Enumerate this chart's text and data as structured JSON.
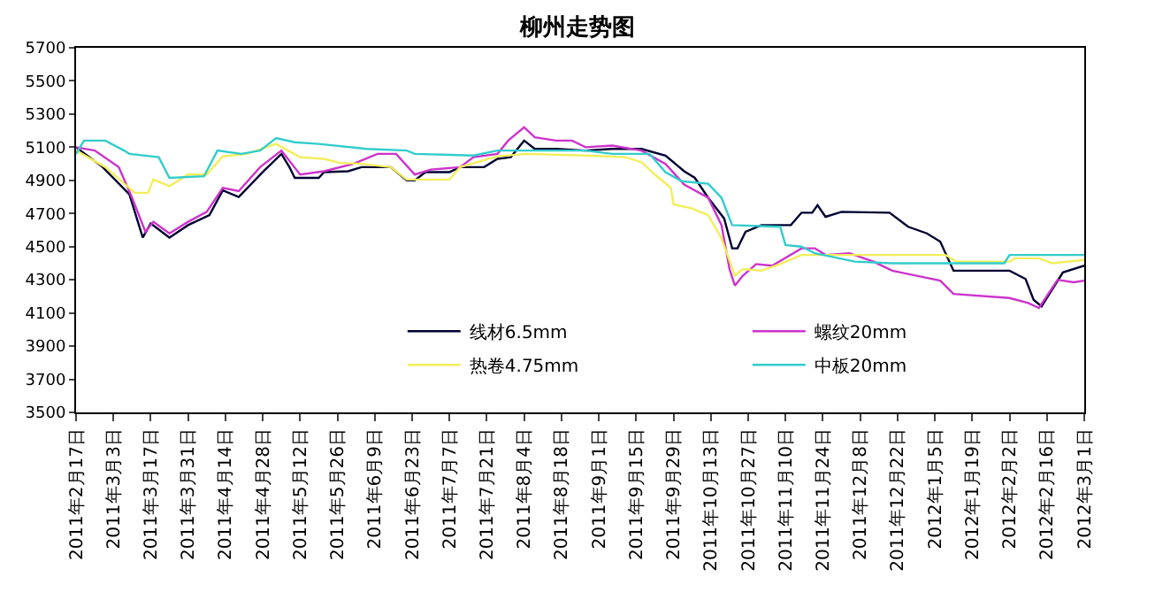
{
  "chart_data": {
    "type": "line",
    "title": "柳州走势图",
    "xlim": [
      "2011-02-17",
      "2012-03-01"
    ],
    "xticks": [
      {
        "value": "2011-02-17",
        "label": "2011年2月17日"
      },
      {
        "value": "2011-03-03",
        "label": "2011年3月3日"
      },
      {
        "value": "2011-03-17",
        "label": "2011年3月17日"
      },
      {
        "value": "2011-03-31",
        "label": "2011年3月31日"
      },
      {
        "value": "2011-04-14",
        "label": "2011年4月14日"
      },
      {
        "value": "2011-04-28",
        "label": "2011年4月28日"
      },
      {
        "value": "2011-05-12",
        "label": "2011年5月12日"
      },
      {
        "value": "2011-05-26",
        "label": "2011年5月26日"
      },
      {
        "value": "2011-06-09",
        "label": "2011年6月9日"
      },
      {
        "value": "2011-06-23",
        "label": "2011年6月23日"
      },
      {
        "value": "2011-07-07",
        "label": "2011年7月7日"
      },
      {
        "value": "2011-07-21",
        "label": "2011年7月21日"
      },
      {
        "value": "2011-08-04",
        "label": "2011年8月4日"
      },
      {
        "value": "2011-08-18",
        "label": "2011年8月18日"
      },
      {
        "value": "2011-09-01",
        "label": "2011年9月1日"
      },
      {
        "value": "2011-09-15",
        "label": "2011年9月15日"
      },
      {
        "value": "2011-09-29",
        "label": "2011年9月29日"
      },
      {
        "value": "2011-10-13",
        "label": "2011年10月13日"
      },
      {
        "value": "2011-10-27",
        "label": "2011年10月27日"
      },
      {
        "value": "2011-11-10",
        "label": "2011年11月10日"
      },
      {
        "value": "2011-11-24",
        "label": "2011年11月24日"
      },
      {
        "value": "2011-12-08",
        "label": "2011年12月8日"
      },
      {
        "value": "2011-12-22",
        "label": "2011年12月22日"
      },
      {
        "value": "2012-01-05",
        "label": "2012年1月5日"
      },
      {
        "value": "2012-01-19",
        "label": "2012年1月19日"
      },
      {
        "value": "2012-02-02",
        "label": "2012年2月2日"
      },
      {
        "value": "2012-02-16",
        "label": "2012年2月16日"
      },
      {
        "value": "2012-03-01",
        "label": "2012年3月1日"
      }
    ],
    "ylim": [
      3500,
      5700
    ],
    "yticks": [
      3500,
      3700,
      3900,
      4100,
      4300,
      4500,
      4700,
      4900,
      5100,
      5300,
      5500,
      5700
    ],
    "grid": false,
    "legend": "bottom",
    "line_style": "solid",
    "series": [
      {
        "name": "线材6.5mm",
        "color": "#000033",
        "x": [
          "2011-02-17",
          "2011-02-27",
          "2011-03-09",
          "2011-03-14",
          "2011-03-17",
          "2011-03-24",
          "2011-03-31",
          "2011-04-08",
          "2011-04-13",
          "2011-04-19",
          "2011-04-28",
          "2011-05-05",
          "2011-05-08",
          "2011-05-10",
          "2011-05-19",
          "2011-05-21",
          "2011-05-30",
          "2011-06-04",
          "2011-06-15",
          "2011-06-21",
          "2011-06-24",
          "2011-06-28",
          "2011-07-07",
          "2011-07-11",
          "2011-07-20",
          "2011-07-25",
          "2011-07-30",
          "2011-08-04",
          "2011-08-08",
          "2011-08-16",
          "2011-08-27",
          "2011-09-06",
          "2011-09-17",
          "2011-09-26",
          "2011-10-03",
          "2011-10-07",
          "2011-10-12",
          "2011-10-18",
          "2011-10-21",
          "2011-10-23",
          "2011-10-26",
          "2011-11-01",
          "2011-11-12",
          "2011-11-16",
          "2011-11-20",
          "2011-11-22",
          "2011-11-25",
          "2011-12-01",
          "2011-12-19",
          "2011-12-26",
          "2012-01-02",
          "2012-01-07",
          "2012-01-12",
          "2012-02-02",
          "2012-02-08",
          "2012-02-11",
          "2012-02-14",
          "2012-02-22",
          "2012-03-01"
        ],
        "values": [
          5100,
          4980,
          4815,
          4555,
          4640,
          4555,
          4630,
          4690,
          4840,
          4800,
          4950,
          5060,
          4980,
          4915,
          4915,
          4950,
          4955,
          4980,
          4980,
          4900,
          4900,
          4950,
          4950,
          4980,
          4980,
          5030,
          5040,
          5140,
          5090,
          5090,
          5080,
          5090,
          5090,
          5050,
          4955,
          4915,
          4795,
          4670,
          4490,
          4490,
          4590,
          4630,
          4630,
          4705,
          4705,
          4750,
          4680,
          4710,
          4705,
          4620,
          4580,
          4530,
          4355,
          4355,
          4305,
          4180,
          4140,
          4345,
          4385
        ]
      },
      {
        "name": "螺纹20mm",
        "color": "#cc33cc",
        "x": [
          "2011-02-17",
          "2011-02-24",
          "2011-03-05",
          "2011-03-10",
          "2011-03-15",
          "2011-03-18",
          "2011-03-24",
          "2011-03-31",
          "2011-04-07",
          "2011-04-13",
          "2011-04-19",
          "2011-04-27",
          "2011-05-05",
          "2011-05-12",
          "2011-05-21",
          "2011-06-01",
          "2011-06-10",
          "2011-06-17",
          "2011-06-24",
          "2011-06-30",
          "2011-07-11",
          "2011-07-16",
          "2011-07-25",
          "2011-07-29",
          "2011-08-04",
          "2011-08-08",
          "2011-08-16",
          "2011-08-22",
          "2011-08-27",
          "2011-09-06",
          "2011-09-17",
          "2011-09-26",
          "2011-10-03",
          "2011-10-12",
          "2011-10-17",
          "2011-10-20",
          "2011-10-22",
          "2011-10-25",
          "2011-10-30",
          "2011-11-05",
          "2011-11-16",
          "2011-11-21",
          "2011-11-25",
          "2011-12-04",
          "2011-12-13",
          "2011-12-20",
          "2012-01-07",
          "2012-01-12",
          "2012-02-02",
          "2012-02-09",
          "2012-02-13",
          "2012-02-20",
          "2012-02-26",
          "2012-03-01"
        ],
        "values": [
          5100,
          5080,
          4980,
          4795,
          4590,
          4650,
          4580,
          4650,
          4710,
          4855,
          4835,
          4980,
          5080,
          4935,
          4955,
          5000,
          5060,
          5060,
          4935,
          4965,
          4980,
          5040,
          5060,
          5140,
          5220,
          5160,
          5140,
          5140,
          5100,
          5110,
          5080,
          5000,
          4875,
          4795,
          4630,
          4365,
          4265,
          4325,
          4395,
          4385,
          4490,
          4490,
          4450,
          4460,
          4410,
          4355,
          4295,
          4215,
          4190,
          4160,
          4130,
          4300,
          4285,
          4295
        ]
      },
      {
        "name": "热卷4.75mm",
        "color": "#f2ee5a",
        "x": [
          "2011-02-17",
          "2011-02-28",
          "2011-03-11",
          "2011-03-16",
          "2011-03-18",
          "2011-03-24",
          "2011-03-31",
          "2011-04-07",
          "2011-04-13",
          "2011-04-22",
          "2011-05-03",
          "2011-05-12",
          "2011-05-21",
          "2011-05-27",
          "2011-06-04",
          "2011-06-15",
          "2011-06-21",
          "2011-07-07",
          "2011-07-11",
          "2011-07-25",
          "2011-08-05",
          "2011-08-27",
          "2011-09-11",
          "2011-09-17",
          "2011-09-22",
          "2011-09-28",
          "2011-09-29",
          "2011-10-06",
          "2011-10-12",
          "2011-10-17",
          "2011-10-22",
          "2011-10-25",
          "2011-11-01",
          "2011-11-08",
          "2011-11-16",
          "2011-12-04",
          "2012-01-09",
          "2012-01-13",
          "2012-02-02",
          "2012-02-04",
          "2012-02-13",
          "2012-02-18",
          "2012-03-01"
        ],
        "values": [
          5080,
          4980,
          4825,
          4825,
          4905,
          4865,
          4935,
          4935,
          5045,
          5060,
          5120,
          5040,
          5030,
          5005,
          5000,
          4980,
          4905,
          4905,
          4980,
          5045,
          5060,
          5050,
          5040,
          5010,
          4935,
          4855,
          4755,
          4730,
          4690,
          4550,
          4325,
          4365,
          4355,
          4395,
          4450,
          4450,
          4450,
          4410,
          4410,
          4430,
          4430,
          4400,
          4420
        ]
      },
      {
        "name": "中板20mm",
        "color": "#33cccc",
        "x": [
          "2011-02-17",
          "2011-02-20",
          "2011-02-28",
          "2011-03-07",
          "2011-03-09",
          "2011-03-20",
          "2011-03-24",
          "2011-04-06",
          "2011-04-11",
          "2011-04-20",
          "2011-04-27",
          "2011-05-03",
          "2011-05-10",
          "2011-05-19",
          "2011-06-06",
          "2011-06-21",
          "2011-06-24",
          "2011-07-16",
          "2011-07-25",
          "2011-08-27",
          "2011-09-06",
          "2011-09-20",
          "2011-09-26",
          "2011-10-02",
          "2011-10-12",
          "2011-10-17",
          "2011-10-21",
          "2011-11-08",
          "2011-11-10",
          "2011-11-16",
          "2011-11-21",
          "2011-12-06",
          "2011-12-20",
          "2012-01-31",
          "2012-02-02",
          "2012-03-01"
        ],
        "values": [
          5060,
          5140,
          5140,
          5080,
          5060,
          5040,
          4915,
          4925,
          5080,
          5060,
          5080,
          5155,
          5130,
          5120,
          5090,
          5080,
          5060,
          5050,
          5080,
          5080,
          5060,
          5060,
          4950,
          4895,
          4880,
          4795,
          4630,
          4620,
          4510,
          4500,
          4460,
          4410,
          4400,
          4400,
          4450,
          4450
        ]
      }
    ]
  }
}
